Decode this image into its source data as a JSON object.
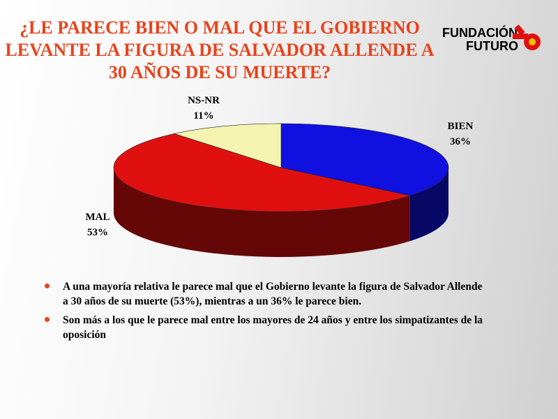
{
  "chart_data": {
    "type": "pie",
    "title": "¿LE PARECE BIEN O MAL QUE EL GOBIERNO LEVANTE LA FIGURA DE SALVADOR ALLENDE A 30 AÑOS DE SU MUERTE?",
    "categories": [
      "BIEN",
      "MAL",
      "NS-NR"
    ],
    "values": [
      36,
      53,
      11
    ],
    "value_labels": [
      "36%",
      "53%",
      "11%"
    ],
    "colors": [
      "#1010e0",
      "#e01010",
      "#f4f4b0"
    ]
  },
  "logo": {
    "line1": "FUNDACIÓN",
    "line2": "FUTURO"
  },
  "notes": [
    "A una mayoría relativa le parece mal que el Gobierno levante la figura de Salvador Allende a 30 años de su muerte (53%), mientras a un 36% le parece bien.",
    "Son más a los que le parece mal entre los mayores de 24 años y entre los simpatizantes de la oposición"
  ]
}
